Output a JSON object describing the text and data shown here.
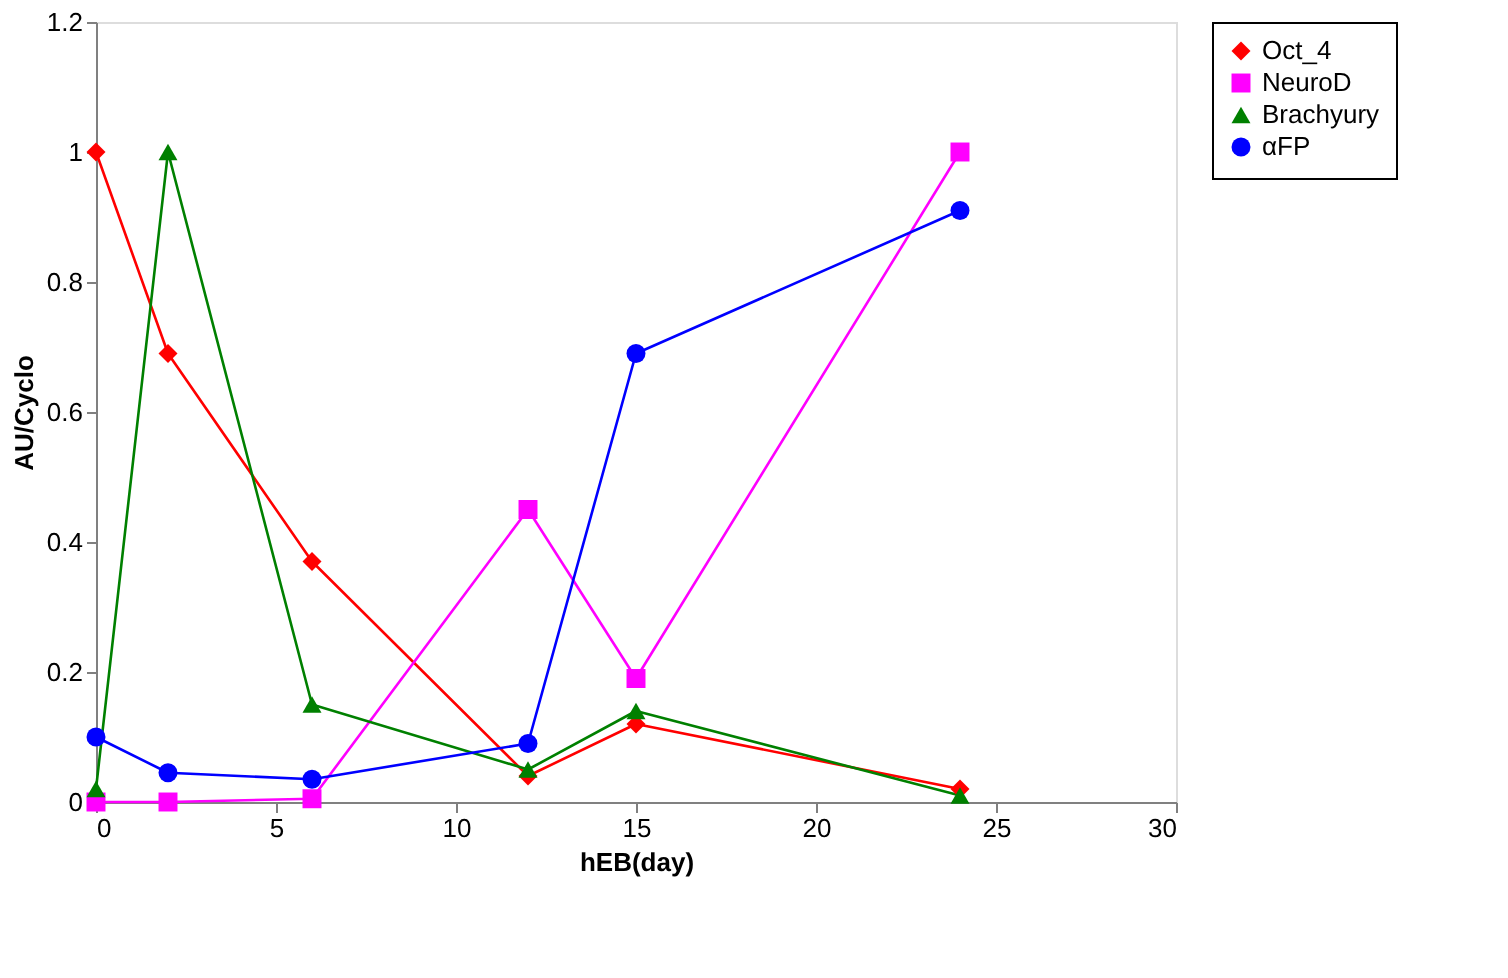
{
  "chart_data": {
    "type": "line",
    "xlabel": "hEB(day)",
    "ylabel": "AU/Cyclo",
    "x": [
      0,
      2,
      6,
      12,
      15,
      24
    ],
    "series": [
      {
        "name": "Oct_4",
        "color": "#ff0000",
        "marker": "diamond",
        "values": [
          1.0,
          0.69,
          0.37,
          0.04,
          0.12,
          0.02
        ]
      },
      {
        "name": "NeuroD",
        "color": "#ff00ff",
        "marker": "square",
        "values": [
          0.0,
          0.0,
          0.005,
          0.45,
          0.19,
          1.0
        ]
      },
      {
        "name": "Brachyury",
        "color": "#008000",
        "marker": "triangle",
        "values": [
          0.02,
          1.0,
          0.15,
          0.05,
          0.14,
          0.01
        ]
      },
      {
        "name": "αFP",
        "color": "#0000ff",
        "marker": "circle",
        "values": [
          0.1,
          0.045,
          0.035,
          0.09,
          0.69,
          0.91
        ]
      }
    ],
    "xlim": [
      0,
      30
    ],
    "xticks": [
      0,
      5,
      10,
      15,
      20,
      25,
      30
    ],
    "ylim": [
      0,
      1.2
    ],
    "yticks": [
      0,
      0.2,
      0.4,
      0.6,
      0.8,
      1,
      1.2
    ],
    "grid": false,
    "legend": "right",
    "line_style": "solid"
  }
}
